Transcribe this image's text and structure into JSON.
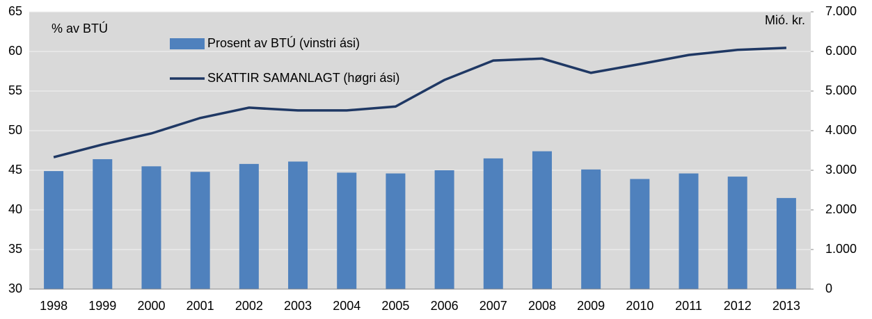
{
  "chart_data": {
    "type": "bar_line",
    "y_label": "% av BTÚ",
    "y2_label": "Mió. kr.",
    "categories": [
      "1998",
      "1999",
      "2000",
      "2001",
      "2002",
      "2003",
      "2004",
      "2005",
      "2006",
      "2007",
      "2008",
      "2009",
      "2010",
      "2011",
      "2012",
      "2013"
    ],
    "series": [
      {
        "name": "Prosent av BTÚ (vinstri ási)",
        "type": "bar",
        "color": "#4f81bd",
        "values": [
          44.9,
          46.4,
          45.5,
          44.8,
          45.8,
          46.1,
          44.7,
          44.6,
          45.0,
          46.5,
          47.4,
          45.1,
          43.9,
          44.6,
          44.2,
          41.5
        ]
      },
      {
        "name": "SKATTIR SAMANLAGT (høgri ási)",
        "type": "line",
        "axis": "y2",
        "color": "#1f3864",
        "values": [
          3330,
          3650,
          3930,
          4320,
          4580,
          4510,
          4510,
          4610,
          5280,
          5770,
          5820,
          5460,
          5680,
          5910,
          6040,
          6090
        ]
      }
    ],
    "ylim": [
      30,
      65
    ],
    "yticks": [
      30,
      35,
      40,
      45,
      50,
      55,
      60,
      65
    ],
    "y2lim": [
      0,
      7000
    ],
    "y2ticks": [
      0,
      {
        "value": 1000,
        "label": "1.000"
      },
      {
        "value": 2000,
        "label": "2.000"
      },
      {
        "value": 3000,
        "label": "3.000"
      },
      {
        "value": 4000,
        "label": "4.000"
      },
      {
        "value": 5000,
        "label": "5.000"
      },
      {
        "value": 6000,
        "label": "6.000"
      },
      {
        "value": 7000,
        "label": "7.000"
      }
    ],
    "grid": true,
    "background": "#d9d9d9"
  }
}
